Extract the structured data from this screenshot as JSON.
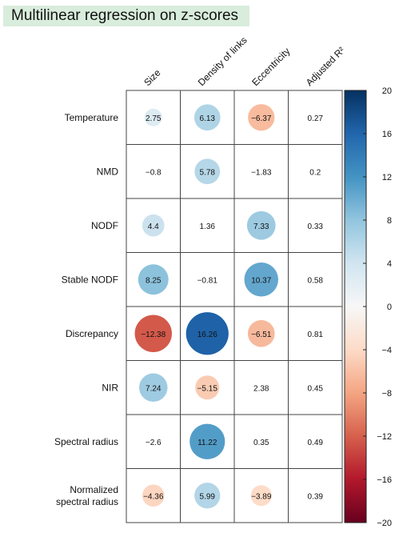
{
  "chart_data": {
    "type": "heatmap",
    "title": "Multilinear regression on z-scores",
    "columns": [
      "Size",
      "Density of links",
      "Eccentricity",
      "Adjusted R²"
    ],
    "rows": [
      "Temperature",
      "NMD",
      "NODF",
      "Stable NODF",
      "Discrepancy",
      "NIR",
      "Spectral radius",
      "Normalized spectral radius"
    ],
    "row_label_lines": [
      [
        "Temperature"
      ],
      [
        "NMD"
      ],
      [
        "NODF"
      ],
      [
        "Stable NODF"
      ],
      [
        "Discrepancy"
      ],
      [
        "NIR"
      ],
      [
        "Spectral radius"
      ],
      [
        "Normalized",
        "spectral radius"
      ]
    ],
    "values": [
      [
        2.75,
        6.13,
        -6.37,
        0.27
      ],
      [
        -0.8,
        5.78,
        -1.83,
        0.2
      ],
      [
        4.4,
        1.36,
        7.33,
        0.33
      ],
      [
        8.25,
        -0.81,
        10.37,
        0.58
      ],
      [
        -12.38,
        16.26,
        -6.51,
        0.81
      ],
      [
        7.24,
        -5.15,
        2.38,
        0.45
      ],
      [
        -2.6,
        11.22,
        0.35,
        0.49
      ],
      [
        -4.36,
        5.99,
        -3.89,
        0.39
      ]
    ],
    "circle_shown": [
      [
        true,
        true,
        true,
        false
      ],
      [
        false,
        true,
        false,
        false
      ],
      [
        true,
        false,
        true,
        false
      ],
      [
        true,
        false,
        true,
        false
      ],
      [
        true,
        true,
        true,
        false
      ],
      [
        true,
        true,
        false,
        false
      ],
      [
        false,
        true,
        false,
        false
      ],
      [
        true,
        true,
        true,
        false
      ]
    ],
    "colorbar": {
      "range": [
        -20,
        20
      ],
      "ticks": [
        20,
        16,
        12,
        8,
        4,
        0,
        -4,
        -8,
        -12,
        -16,
        -20
      ],
      "colors": [
        "#67001f",
        "#b2182b",
        "#d6604d",
        "#f4a582",
        "#fddbc7",
        "#f7f7f7",
        "#d1e5f0",
        "#92c5de",
        "#4393c3",
        "#2166ac",
        "#053061"
      ]
    }
  }
}
